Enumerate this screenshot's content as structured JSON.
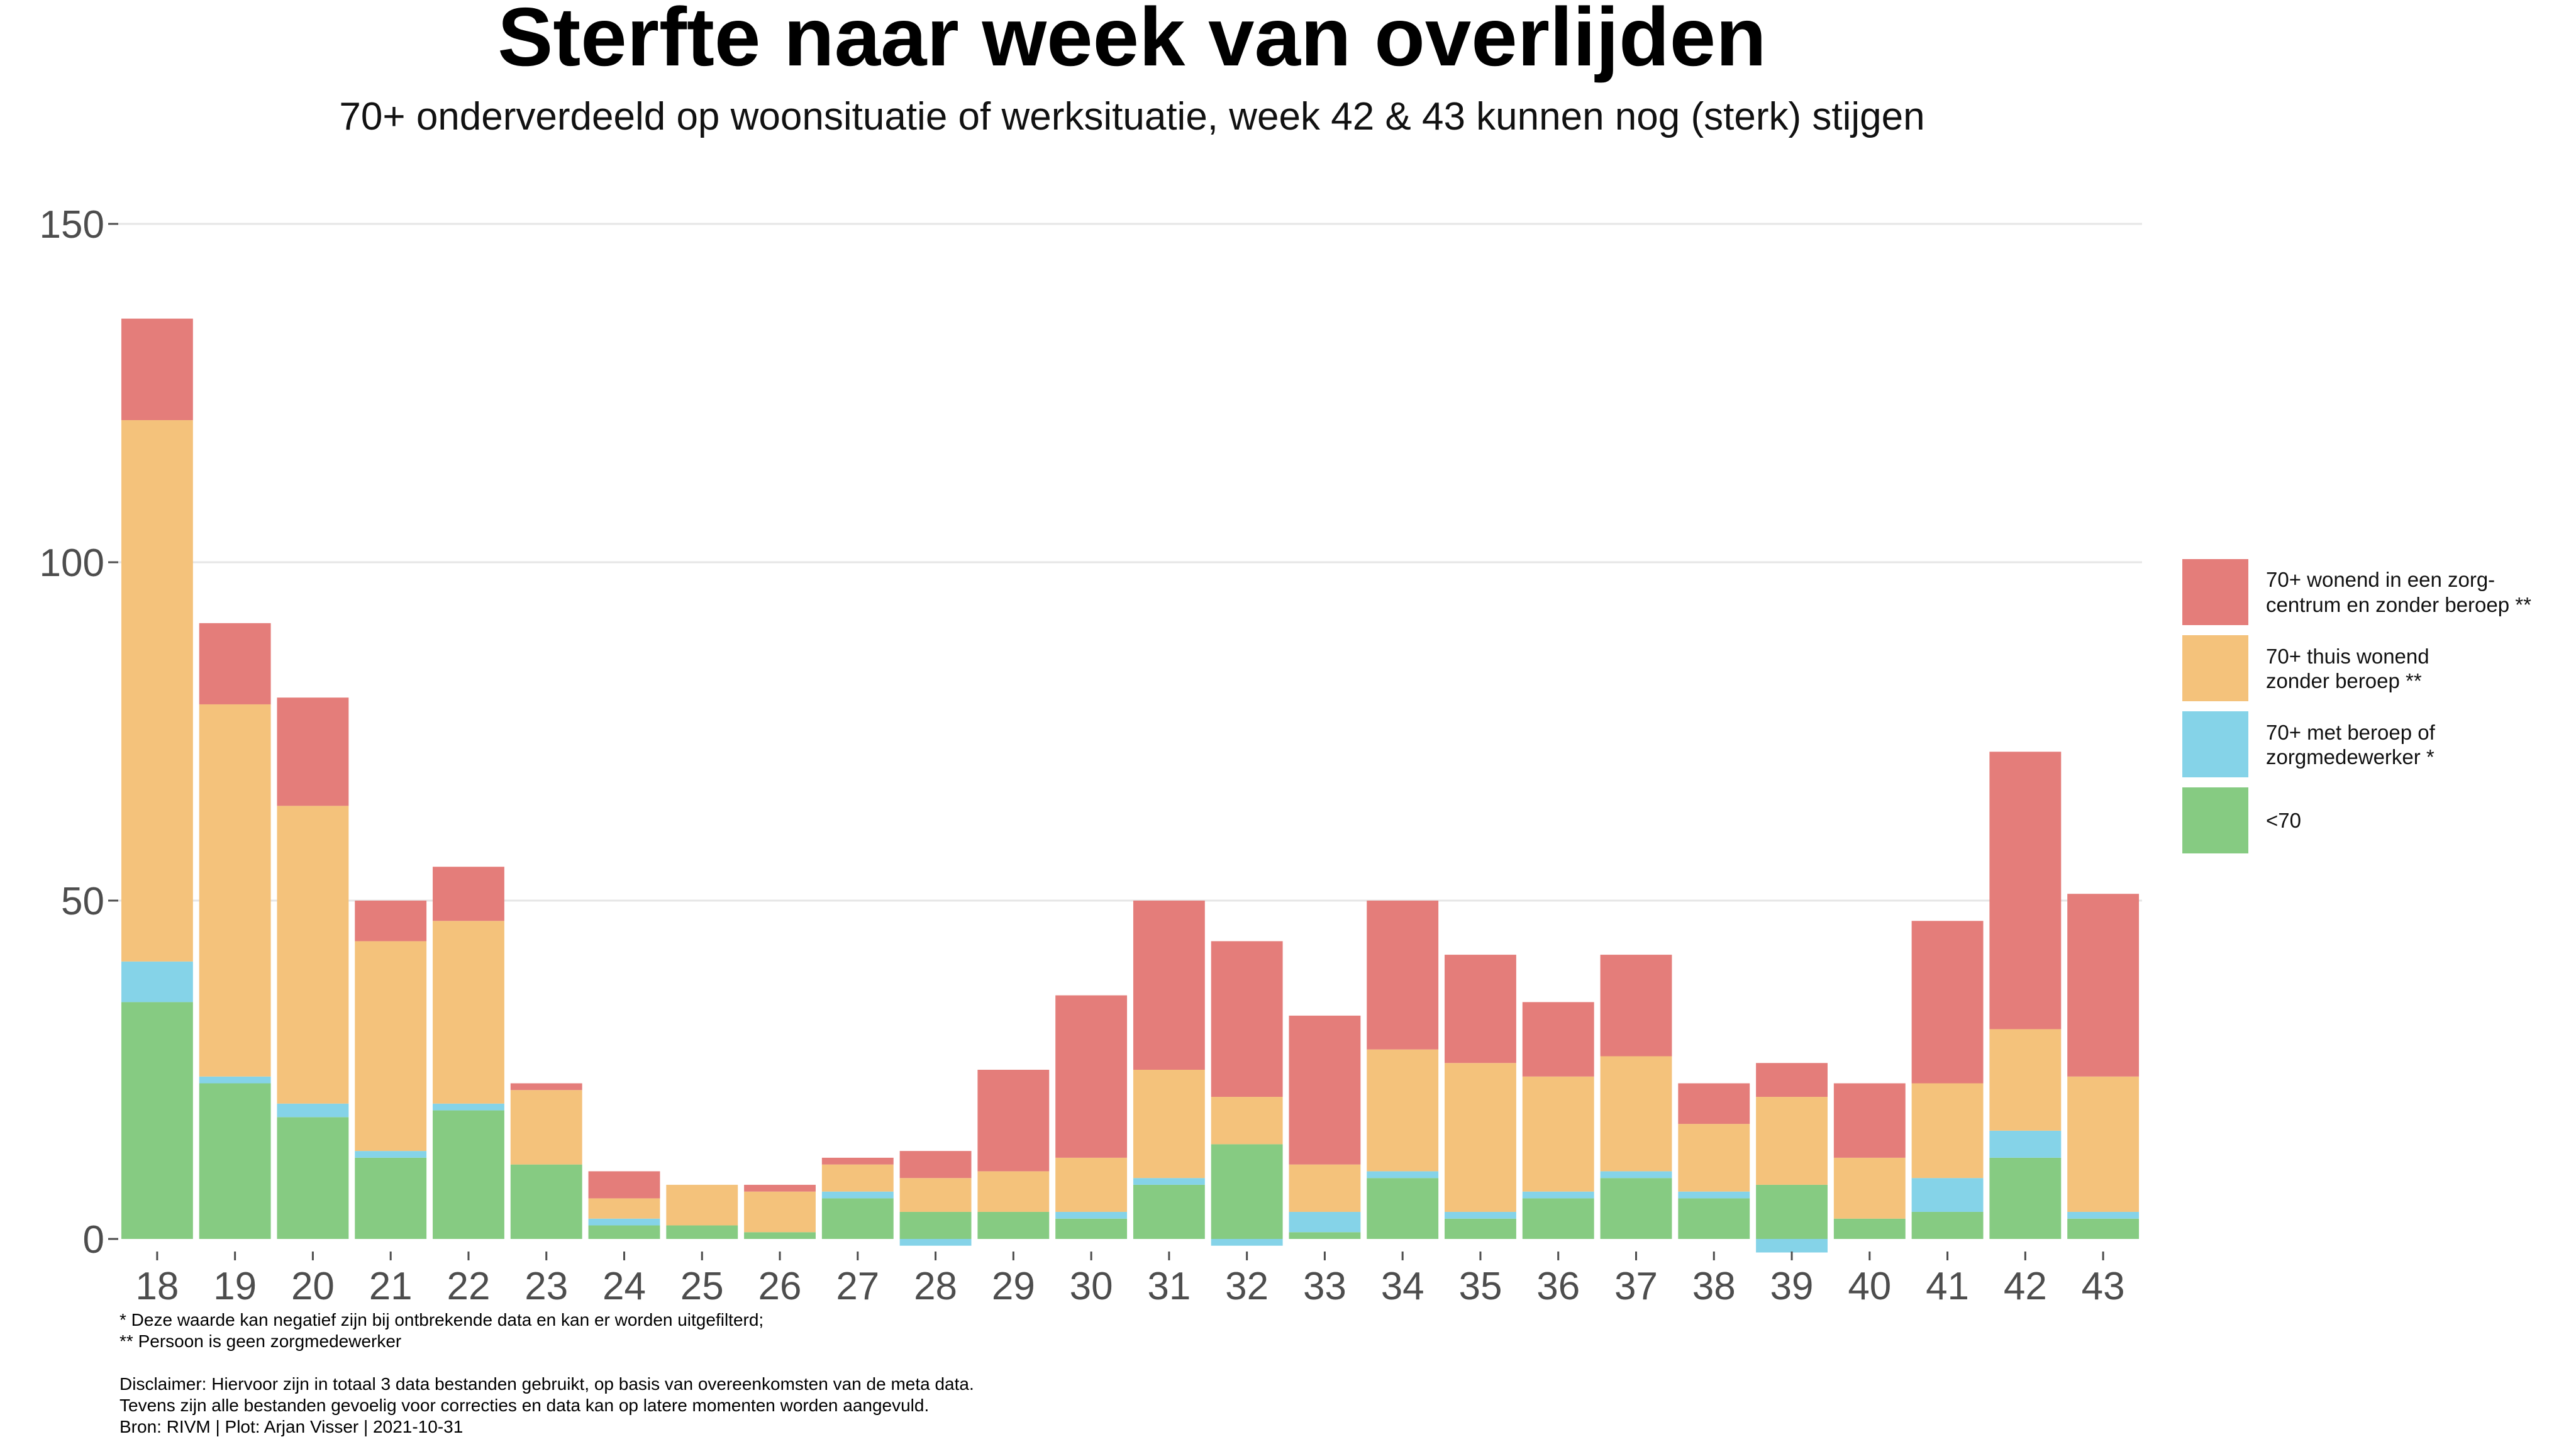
{
  "title": "Sterfte naar week van overlijden",
  "subtitle": "70+ onderverdeeld op woonsituatie of werksituatie, week 42 & 43 kunnen nog (sterk) stijgen",
  "chart_data": {
    "type": "bar",
    "stacked": true,
    "categories": [
      "18",
      "19",
      "20",
      "21",
      "22",
      "23",
      "24",
      "25",
      "26",
      "27",
      "28",
      "29",
      "30",
      "31",
      "32",
      "33",
      "34",
      "35",
      "36",
      "37",
      "38",
      "39",
      "40",
      "41",
      "42",
      "43"
    ],
    "series": [
      {
        "name": "<70",
        "color": "#86cb82",
        "values": [
          35,
          23,
          18,
          12,
          19,
          11,
          2,
          2,
          1,
          6,
          4,
          4,
          3,
          8,
          14,
          1,
          9,
          3,
          6,
          9,
          6,
          8,
          3,
          4,
          12,
          3
        ]
      },
      {
        "name": "70+ met beroep of zorgmedewerker *",
        "color": "#85d3e8",
        "values": [
          6,
          1,
          2,
          1,
          1,
          0,
          1,
          0,
          0,
          1,
          -1,
          0,
          1,
          1,
          -1,
          3,
          1,
          1,
          1,
          1,
          1,
          -2,
          0,
          5,
          4,
          1
        ]
      },
      {
        "name": "70+ thuis wonend zonder beroep **",
        "color": "#f4c27b",
        "values": [
          80,
          55,
          44,
          31,
          27,
          11,
          3,
          6,
          6,
          4,
          5,
          6,
          8,
          16,
          7,
          7,
          18,
          22,
          17,
          17,
          10,
          13,
          9,
          14,
          15,
          20
        ]
      },
      {
        "name": "70+ wonend in een zorgcentrum en zonder beroep **",
        "color": "#e47d7a",
        "values": [
          15,
          12,
          16,
          6,
          8,
          1,
          4,
          0,
          1,
          1,
          4,
          15,
          24,
          25,
          23,
          22,
          22,
          16,
          11,
          15,
          6,
          5,
          11,
          24,
          41,
          27
        ]
      }
    ],
    "yticks": [
      0,
      50,
      100,
      150
    ],
    "ylim": [
      -2,
      150
    ],
    "legend": [
      {
        "line1": "70+ wonend in een zorg-",
        "line2": "centrum en zonder beroep **",
        "color": "#e47d7a"
      },
      {
        "line1": "70+ thuis wonend",
        "line2": "zonder beroep **",
        "color": "#f4c27b"
      },
      {
        "line1": "70+ met beroep of",
        "line2": "zorgmedewerker *",
        "color": "#85d3e8"
      },
      {
        "line1": "<70",
        "line2": "",
        "color": "#86cb82"
      }
    ]
  },
  "notes": {
    "line1": "* Deze waarde kan negatief zijn bij ontbrekende data en kan er worden uitgefilterd;",
    "line2": "** Persoon is geen zorgmedewerker",
    "line3": "Disclaimer: Hiervoor zijn in totaal 3 data bestanden gebruikt, op basis van overeenkomsten van de meta data.",
    "line4": "Tevens zijn alle bestanden gevoelig voor correcties en data kan op latere momenten worden aangevuld.",
    "line5": "Bron: RIVM | Plot: Arjan Visser | 2021-10-31"
  }
}
